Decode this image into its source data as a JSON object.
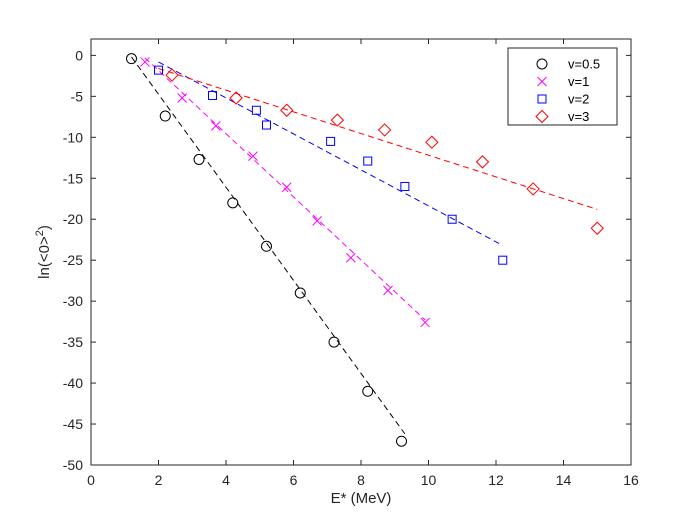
{
  "chart_data": {
    "type": "scatter",
    "xlabel": "E* (MeV)",
    "ylabel_main": "ln(<0>",
    "ylabel_sup": "2",
    "ylabel_close": ")",
    "xlim": [
      0,
      16
    ],
    "ylim": [
      -50,
      2
    ],
    "xticks": [
      0,
      2,
      4,
      6,
      8,
      10,
      12,
      14,
      16
    ],
    "yticks": [
      0,
      -5,
      -10,
      -15,
      -20,
      -25,
      -30,
      -35,
      -40,
      -45,
      -50
    ],
    "grid": false,
    "legend_position": "top-right",
    "series": [
      {
        "name": "v=0.5",
        "marker": "circle",
        "color": "#000000",
        "x": [
          1.2,
          2.2,
          3.2,
          4.2,
          5.2,
          6.2,
          7.2,
          8.2,
          9.2
        ],
        "y": [
          -0.4,
          -7.4,
          -12.7,
          -18.0,
          -23.3,
          -29.0,
          -35.0,
          -41.0,
          -47.1
        ],
        "fit": {
          "x": [
            1.2,
            9.3
          ],
          "y": [
            -0.2,
            -46.2
          ]
        }
      },
      {
        "name": "v=1",
        "marker": "x",
        "color": "#ff00ff",
        "x": [
          1.6,
          2.7,
          3.7,
          4.8,
          5.8,
          6.7,
          7.7,
          8.8,
          9.9
        ],
        "y": [
          -0.8,
          -5.2,
          -8.6,
          -12.3,
          -16.1,
          -20.2,
          -24.7,
          -28.7,
          -32.6
        ],
        "fit": {
          "x": [
            1.6,
            9.9
          ],
          "y": [
            -0.3,
            -32.3
          ]
        }
      },
      {
        "name": "v=2",
        "marker": "square",
        "color": "#0000ff",
        "x": [
          2.0,
          3.6,
          4.9,
          5.2,
          7.1,
          8.2,
          9.3,
          10.7,
          12.2
        ],
        "y": [
          -1.8,
          -4.9,
          -6.7,
          -8.5,
          -10.5,
          -12.9,
          -16.0,
          -20.0,
          -25.0
        ],
        "fit": {
          "x": [
            2.0,
            12.2
          ],
          "y": [
            -0.8,
            -23.2
          ]
        }
      },
      {
        "name": "v=3",
        "marker": "diamond",
        "color": "#ff0000",
        "x": [
          2.4,
          4.3,
          5.8,
          7.3,
          8.7,
          10.1,
          11.6,
          13.1,
          15.0
        ],
        "y": [
          -2.4,
          -5.2,
          -6.7,
          -7.9,
          -9.1,
          -10.6,
          -13.0,
          -16.3,
          -21.1
        ],
        "fit": {
          "x": [
            2.0,
            15.0
          ],
          "y": [
            -1.6,
            -18.8
          ]
        }
      }
    ]
  }
}
